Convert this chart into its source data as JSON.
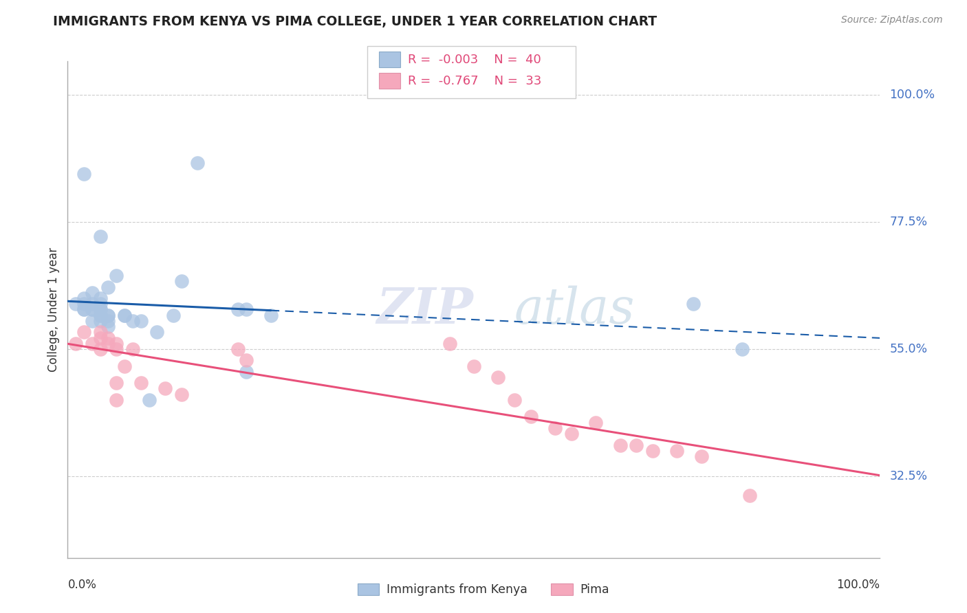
{
  "title": "IMMIGRANTS FROM KENYA VS PIMA COLLEGE, UNDER 1 YEAR CORRELATION CHART",
  "source_text": "Source: ZipAtlas.com",
  "ylabel": "College, Under 1 year",
  "xlim": [
    0.0,
    1.0
  ],
  "ylim": [
    0.18,
    1.06
  ],
  "yticks": [
    0.325,
    0.55,
    0.775,
    1.0
  ],
  "ytick_labels": [
    "32.5%",
    "55.0%",
    "77.5%",
    "100.0%"
  ],
  "kenya_R": "-0.003",
  "kenya_N": "40",
  "pima_R": "-0.767",
  "pima_N": "33",
  "kenya_color": "#aac4e2",
  "pima_color": "#f5a8bc",
  "kenya_line_color": "#1a5ca8",
  "pima_line_color": "#e8507a",
  "legend_label_kenya": "Immigrants from Kenya",
  "legend_label_pima": "Pima",
  "watermark_zip": "ZIP",
  "watermark_atlas": "atlas",
  "background_color": "#ffffff",
  "grid_color": "#c8c8c8",
  "kenya_x": [
    0.01,
    0.02,
    0.02,
    0.02,
    0.02,
    0.02,
    0.03,
    0.03,
    0.03,
    0.03,
    0.03,
    0.04,
    0.04,
    0.04,
    0.04,
    0.04,
    0.04,
    0.04,
    0.04,
    0.05,
    0.05,
    0.05,
    0.05,
    0.05,
    0.06,
    0.07,
    0.07,
    0.08,
    0.09,
    0.1,
    0.11,
    0.13,
    0.14,
    0.16,
    0.21,
    0.22,
    0.22,
    0.25,
    0.77,
    0.83
  ],
  "kenya_y": [
    0.63,
    0.86,
    0.64,
    0.63,
    0.62,
    0.62,
    0.65,
    0.63,
    0.62,
    0.62,
    0.6,
    0.63,
    0.62,
    0.62,
    0.61,
    0.61,
    0.6,
    0.75,
    0.64,
    0.66,
    0.61,
    0.61,
    0.6,
    0.59,
    0.68,
    0.61,
    0.61,
    0.6,
    0.6,
    0.46,
    0.58,
    0.61,
    0.67,
    0.88,
    0.62,
    0.62,
    0.51,
    0.61,
    0.63,
    0.55
  ],
  "pima_x": [
    0.01,
    0.02,
    0.03,
    0.04,
    0.04,
    0.04,
    0.05,
    0.05,
    0.06,
    0.06,
    0.06,
    0.06,
    0.07,
    0.08,
    0.09,
    0.12,
    0.14,
    0.21,
    0.22,
    0.47,
    0.5,
    0.53,
    0.55,
    0.57,
    0.6,
    0.62,
    0.65,
    0.68,
    0.7,
    0.72,
    0.75,
    0.78,
    0.84
  ],
  "pima_y": [
    0.56,
    0.58,
    0.56,
    0.58,
    0.57,
    0.55,
    0.57,
    0.56,
    0.56,
    0.55,
    0.49,
    0.46,
    0.52,
    0.55,
    0.49,
    0.48,
    0.47,
    0.55,
    0.53,
    0.56,
    0.52,
    0.5,
    0.46,
    0.43,
    0.41,
    0.4,
    0.42,
    0.38,
    0.38,
    0.37,
    0.37,
    0.36,
    0.29
  ]
}
